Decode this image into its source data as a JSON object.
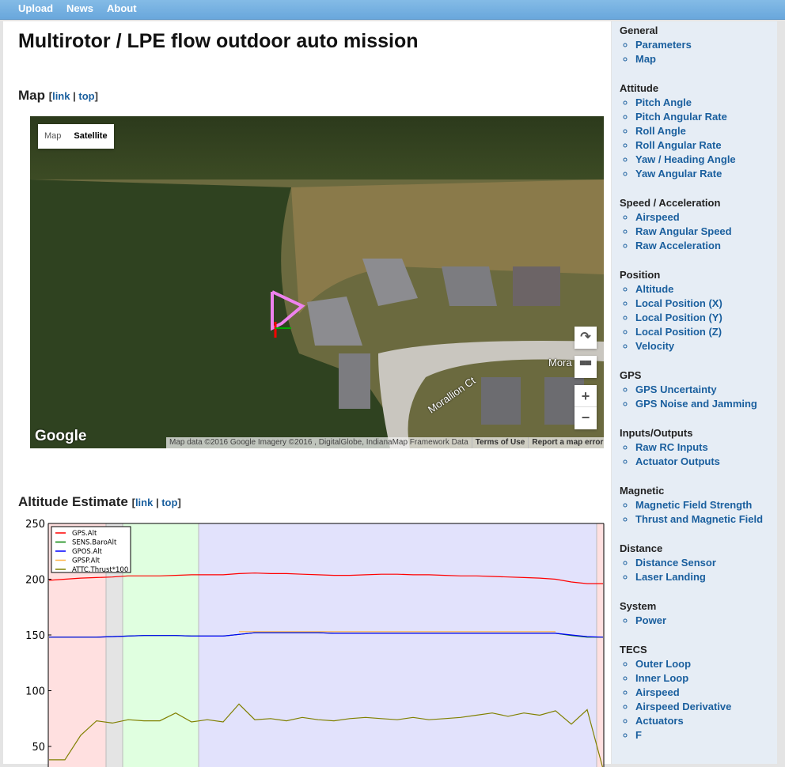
{
  "nav": {
    "items": [
      "Upload",
      "News",
      "About"
    ]
  },
  "title": "Multirotor / LPE flow outdoor auto mission",
  "map_section": {
    "title": "Map",
    "link": "link",
    "top": "top"
  },
  "map": {
    "type_map": "Map",
    "type_satellite": "Satellite",
    "street_label_1": "Morallion Ct",
    "street_label_2": "Mora",
    "logo": "Google",
    "attribution": "Map data ©2016 Google Imagery ©2016 , DigitalGlobe, IndianaMap Framework Data",
    "terms": "Terms of Use",
    "report": "Report a map error",
    "buttons": {
      "rotate": "rotate-icon",
      "tilt": "tilt-icon",
      "zoom_in": "+",
      "zoom_out": "−"
    },
    "track_color": "#ee82ee"
  },
  "altitude_section": {
    "title": "Altitude Estimate",
    "link": "link",
    "top": "top"
  },
  "chart_data": {
    "type": "line",
    "ylim": [
      30,
      250
    ],
    "yticks": [
      50,
      100,
      150,
      200,
      250
    ],
    "grid": false,
    "legend": "top-left",
    "mode_colors": [
      "#ffe0e0",
      "#e4e4e4",
      "#e0ffe0",
      "#e2e2fc",
      "#ffe0e0"
    ],
    "series": [
      {
        "name": "GPS.Alt",
        "color": "#ff0000",
        "values": [
          199,
          200,
          201,
          201.5,
          202,
          203,
          203,
          203,
          203.5,
          204,
          204,
          204,
          205,
          205.5,
          205,
          205,
          204.5,
          204,
          203.5,
          203.5,
          204,
          204.5,
          204.5,
          204,
          204,
          203.5,
          203,
          203,
          202.5,
          202,
          201.5,
          201,
          200,
          197.5,
          196,
          196
        ]
      },
      {
        "name": "SENS.BaroAlt",
        "color": "#008000",
        "values": [
          148,
          148,
          148,
          148,
          148.5,
          149,
          149.5,
          149.5,
          149.5,
          149,
          149,
          149,
          150.5,
          152,
          152,
          152,
          152,
          152,
          151.5,
          151.5,
          151.5,
          151.5,
          151.5,
          151.5,
          151.5,
          151.5,
          151.5,
          151.5,
          151.5,
          151.5,
          151.5,
          151.5,
          151.5,
          149.5,
          148,
          148
        ]
      },
      {
        "name": "GPOS.Alt",
        "color": "#0000ff",
        "values": [
          148,
          148,
          148,
          148,
          148.5,
          149,
          149.5,
          149.5,
          149.5,
          149,
          149,
          149,
          150.5,
          152,
          152,
          152,
          152,
          152,
          151.5,
          151.5,
          151.5,
          151.5,
          151.5,
          151.5,
          151.5,
          151.5,
          151.5,
          151.5,
          151.5,
          151.5,
          151.5,
          151.5,
          151.5,
          150,
          148.5,
          148
        ]
      },
      {
        "name": "GPSP.Alt",
        "color": "#ffb347",
        "values": [
          null,
          null,
          null,
          null,
          null,
          null,
          null,
          null,
          null,
          null,
          null,
          null,
          153,
          153,
          153,
          153,
          153,
          153,
          153,
          153,
          153,
          153,
          153,
          153,
          153,
          153,
          153,
          153,
          153,
          153,
          153,
          153,
          153,
          null,
          null,
          null
        ]
      },
      {
        "name": "ATTC.Thrust*100",
        "color": "#808000",
        "values": [
          38,
          38,
          60,
          73,
          71,
          74,
          73,
          73,
          80,
          72,
          74,
          72,
          88,
          74,
          75,
          73,
          76,
          74,
          73,
          75,
          76,
          75,
          74,
          76,
          74,
          75,
          76,
          78,
          80,
          77,
          80,
          78,
          82,
          70,
          83,
          30
        ]
      }
    ]
  },
  "sidebar": [
    {
      "heading": "General",
      "items": [
        "Parameters",
        "Map"
      ]
    },
    {
      "heading": "Attitude",
      "items": [
        "Pitch Angle",
        "Pitch Angular Rate",
        "Roll Angle",
        "Roll Angular Rate",
        "Yaw / Heading Angle",
        "Yaw Angular Rate"
      ]
    },
    {
      "heading": "Speed / Acceleration",
      "items": [
        "Airspeed",
        "Raw Angular Speed",
        "Raw Acceleration"
      ]
    },
    {
      "heading": "Position",
      "items": [
        "Altitude",
        "Local Position (X)",
        "Local Position (Y)",
        "Local Position (Z)",
        "Velocity"
      ]
    },
    {
      "heading": "GPS",
      "items": [
        "GPS Uncertainty",
        "GPS Noise and Jamming"
      ]
    },
    {
      "heading": "Inputs/Outputs",
      "items": [
        "Raw RC Inputs",
        "Actuator Outputs"
      ]
    },
    {
      "heading": "Magnetic",
      "items": [
        "Magnetic Field Strength",
        "Thrust and Magnetic Field"
      ]
    },
    {
      "heading": "Distance",
      "items": [
        "Distance Sensor",
        "Laser Landing"
      ]
    },
    {
      "heading": "System",
      "items": [
        "Power"
      ]
    },
    {
      "heading": "TECS",
      "items": [
        "Outer Loop",
        "Inner Loop",
        "Airspeed",
        "Airspeed Derivative",
        "Actuators",
        "F"
      ]
    }
  ]
}
